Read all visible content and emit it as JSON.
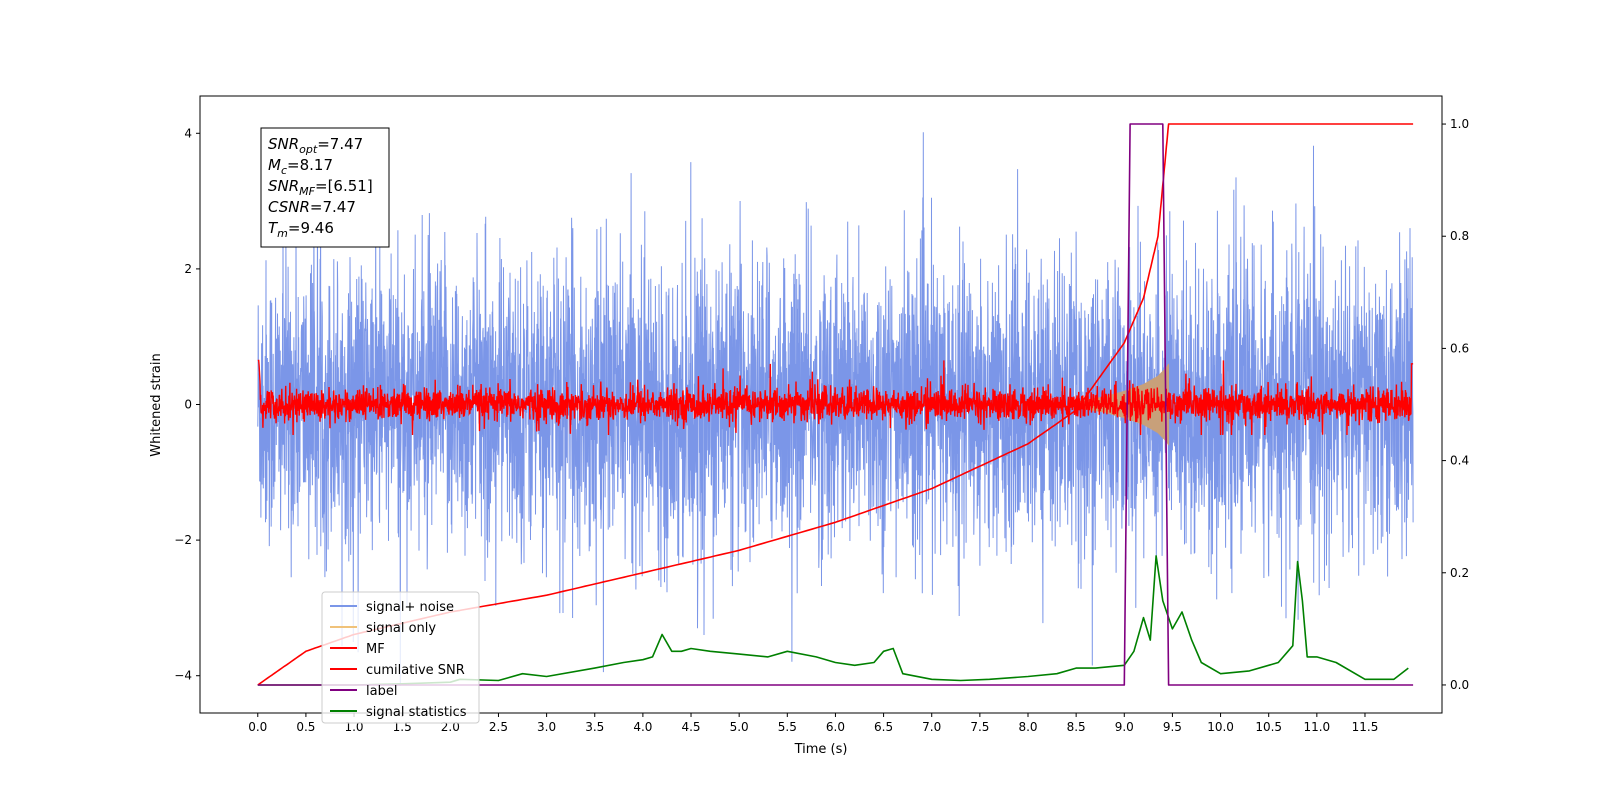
{
  "chart_data": {
    "type": "line",
    "xlabel": "Time (s)",
    "ylabel": "Whitened strain",
    "xlim": [
      -0.6,
      12.3
    ],
    "ylim_left": [
      -4.55,
      4.55
    ],
    "ylim_right": [
      -0.05,
      1.05
    ],
    "x_ticks": [
      "0.0",
      "0.5",
      "1.0",
      "1.5",
      "2.0",
      "2.5",
      "3.0",
      "3.5",
      "4.0",
      "4.5",
      "5.0",
      "5.5",
      "6.0",
      "6.5",
      "7.0",
      "7.5",
      "8.0",
      "8.5",
      "9.0",
      "9.5",
      "10.0",
      "10.5",
      "11.0",
      "11.5"
    ],
    "y_ticks_left": [
      "-4",
      "-2",
      "0",
      "2",
      "4"
    ],
    "y_ticks_right": [
      "0.0",
      "0.2",
      "0.4",
      "0.6",
      "0.8",
      "1.0"
    ],
    "annotation": [
      {
        "base": "SNR",
        "sub": "opt",
        "value": "=7.47"
      },
      {
        "base": "M",
        "sub": "c",
        "value": "=8.17"
      },
      {
        "base": "SNR",
        "sub": "MF",
        "value": "=[6.51]"
      },
      {
        "base": "CSNR",
        "sub": "",
        "value": "=7.47"
      },
      {
        "base": "T",
        "sub": "m",
        "value": "=9.46"
      }
    ],
    "legend_position": "lower-left",
    "series": [
      {
        "name": "signal+ noise",
        "color": "#7b96e8",
        "axis": "left",
        "description_range": [
          -4.0,
          4.0
        ]
      },
      {
        "name": "signal only",
        "color": "#f0c27a",
        "axis": "left",
        "envelope": {
          "x": [
            8.5,
            8.8,
            9.0,
            9.2,
            9.35,
            9.44,
            9.46
          ],
          "amplitude": [
            0.05,
            0.12,
            0.2,
            0.3,
            0.42,
            0.55,
            0.6
          ]
        }
      },
      {
        "name": "MF",
        "color": "#ff0000",
        "axis": "left",
        "description_range": [
          -0.4,
          0.6
        ]
      },
      {
        "name": "cumilative SNR",
        "color": "#ff0000",
        "axis": "right",
        "x": [
          0.0,
          0.5,
          1.0,
          2.0,
          3.0,
          4.0,
          5.0,
          6.0,
          7.0,
          8.0,
          8.5,
          9.0,
          9.2,
          9.35,
          9.46,
          12.0
        ],
        "y": [
          0.0,
          0.06,
          0.09,
          0.13,
          0.16,
          0.2,
          0.24,
          0.29,
          0.35,
          0.43,
          0.49,
          0.61,
          0.69,
          0.8,
          1.0,
          1.0
        ]
      },
      {
        "name": "label",
        "color": "#800080",
        "axis": "right",
        "x": [
          0.0,
          9.0,
          9.06,
          9.4,
          9.46,
          12.0
        ],
        "y": [
          0.0,
          0.0,
          1.0,
          1.0,
          0.0,
          0.0
        ]
      },
      {
        "name": "signal statistics",
        "color": "#008000",
        "axis": "right",
        "x": [
          0.0,
          0.5,
          1.0,
          1.5,
          2.0,
          2.1,
          2.5,
          2.75,
          3.0,
          3.5,
          3.8,
          4.0,
          4.1,
          4.2,
          4.3,
          4.4,
          4.5,
          4.7,
          5.0,
          5.3,
          5.5,
          5.8,
          6.0,
          6.2,
          6.4,
          6.5,
          6.6,
          6.7,
          7.0,
          7.3,
          7.6,
          8.0,
          8.3,
          8.5,
          8.7,
          9.0,
          9.1,
          9.2,
          9.27,
          9.33,
          9.4,
          9.5,
          9.6,
          9.7,
          9.8,
          10.0,
          10.3,
          10.6,
          10.7,
          10.75,
          10.8,
          10.85,
          10.9,
          11.0,
          11.2,
          11.5,
          11.8,
          11.95
        ],
        "y": [
          0.0,
          0.0,
          0.0,
          0.002,
          0.005,
          0.01,
          0.008,
          0.02,
          0.015,
          0.03,
          0.04,
          0.045,
          0.05,
          0.09,
          0.06,
          0.06,
          0.065,
          0.06,
          0.055,
          0.05,
          0.06,
          0.05,
          0.04,
          0.035,
          0.04,
          0.06,
          0.065,
          0.02,
          0.01,
          0.008,
          0.01,
          0.015,
          0.02,
          0.03,
          0.03,
          0.035,
          0.06,
          0.12,
          0.08,
          0.23,
          0.15,
          0.1,
          0.13,
          0.08,
          0.04,
          0.02,
          0.025,
          0.04,
          0.06,
          0.07,
          0.22,
          0.15,
          0.05,
          0.05,
          0.04,
          0.01,
          0.01,
          0.03
        ]
      }
    ]
  }
}
